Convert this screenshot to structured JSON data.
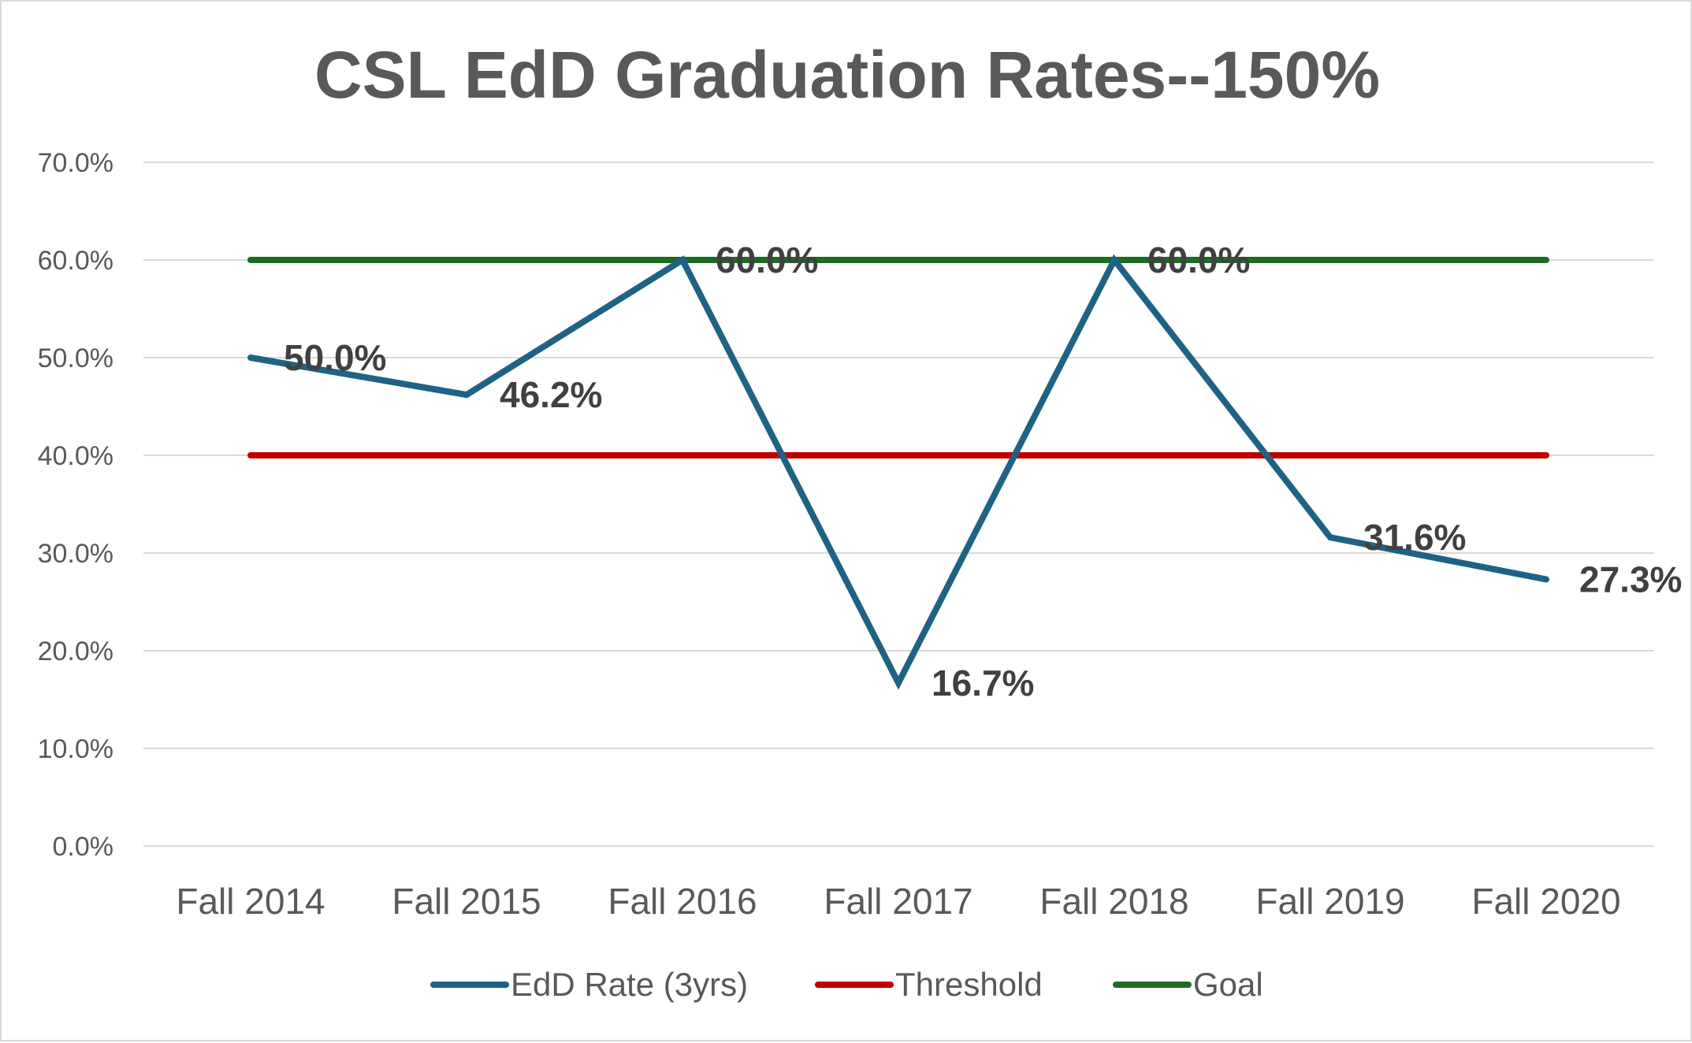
{
  "chart_data": {
    "type": "line",
    "title": "CSL EdD Graduation Rates--150%",
    "xlabel": "",
    "ylabel": "",
    "categories": [
      "Fall 2014",
      "Fall 2015",
      "Fall 2016",
      "Fall 2017",
      "Fall 2018",
      "Fall 2019",
      "Fall 2020"
    ],
    "ylim": [
      0,
      70
    ],
    "y_ticks": [
      "0.0%",
      "10.0%",
      "20.0%",
      "30.0%",
      "40.0%",
      "50.0%",
      "60.0%",
      "70.0%"
    ],
    "grid": true,
    "legend_position": "bottom",
    "series": [
      {
        "name": "EdD Rate (3yrs)",
        "color": "#1f6285",
        "values": [
          50.0,
          46.2,
          60.0,
          16.7,
          60.0,
          31.6,
          27.3
        ],
        "data_labels": [
          "50.0%",
          "46.2%",
          "60.0%",
          "16.7%",
          "60.0%",
          "31.6%",
          "27.3%"
        ]
      },
      {
        "name": "Threshold",
        "color": "#c00000",
        "values": [
          40,
          40,
          40,
          40,
          40,
          40,
          40
        ]
      },
      {
        "name": "Goal",
        "color": "#1e6b24",
        "values": [
          60,
          60,
          60,
          60,
          60,
          60,
          60
        ]
      }
    ]
  }
}
